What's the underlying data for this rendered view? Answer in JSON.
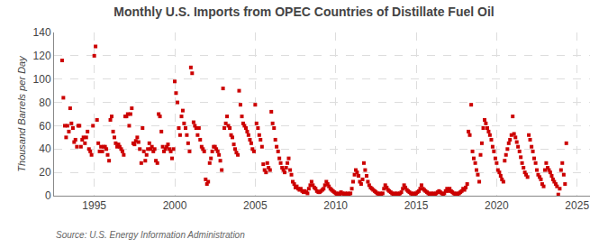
{
  "chart_data": {
    "type": "scatter",
    "title": "Monthly U.S. Imports from OPEC Countries of Distillate Fuel Oil",
    "y_label": "Thousand Barrels per Day",
    "annotations": [
      "Source: U.S. Energy Information Administration"
    ],
    "color": "#cc0000",
    "marker": "square",
    "grid": true,
    "xlim": [
      1992.5,
      2025.8
    ],
    "xticks": [
      1995,
      2000,
      2005,
      2010,
      2015,
      2020,
      2025
    ],
    "ylim": [
      0,
      140
    ],
    "yticks": [
      0,
      20,
      40,
      60,
      80,
      100,
      120,
      140
    ],
    "x": [
      1993.0,
      1993.08,
      1993.17,
      1993.25,
      1993.33,
      1993.42,
      1993.5,
      1993.58,
      1993.67,
      1993.75,
      1993.83,
      1993.92,
      1994.0,
      1994.08,
      1994.17,
      1994.25,
      1994.33,
      1994.42,
      1994.5,
      1994.58,
      1994.67,
      1994.75,
      1994.83,
      1994.92,
      1995.0,
      1995.08,
      1995.17,
      1995.25,
      1995.33,
      1995.42,
      1995.5,
      1995.58,
      1995.67,
      1995.75,
      1995.83,
      1995.92,
      1996.0,
      1996.08,
      1996.17,
      1996.25,
      1996.33,
      1996.42,
      1996.5,
      1996.58,
      1996.67,
      1996.75,
      1996.83,
      1996.92,
      1997.0,
      1997.08,
      1997.17,
      1997.25,
      1997.33,
      1997.42,
      1997.5,
      1997.58,
      1997.67,
      1997.75,
      1997.83,
      1997.92,
      1998.0,
      1998.08,
      1998.17,
      1998.25,
      1998.33,
      1998.42,
      1998.5,
      1998.58,
      1998.67,
      1998.75,
      1998.83,
      1998.92,
      1999.0,
      1999.08,
      1999.17,
      1999.25,
      1999.33,
      1999.42,
      1999.5,
      1999.58,
      1999.67,
      1999.75,
      1999.83,
      1999.92,
      2000.0,
      2000.08,
      2000.17,
      2000.25,
      2000.33,
      2000.42,
      2000.5,
      2000.58,
      2000.67,
      2000.75,
      2000.83,
      2000.92,
      2001.0,
      2001.08,
      2001.17,
      2001.25,
      2001.33,
      2001.42,
      2001.5,
      2001.58,
      2001.67,
      2001.75,
      2001.83,
      2001.92,
      2002.0,
      2002.08,
      2002.17,
      2002.25,
      2002.33,
      2002.42,
      2002.5,
      2002.58,
      2002.67,
      2002.75,
      2002.83,
      2002.92,
      2003.0,
      2003.08,
      2003.17,
      2003.25,
      2003.33,
      2003.42,
      2003.5,
      2003.58,
      2003.67,
      2003.75,
      2003.83,
      2003.92,
      2004.0,
      2004.08,
      2004.17,
      2004.25,
      2004.33,
      2004.42,
      2004.5,
      2004.58,
      2004.67,
      2004.75,
      2004.83,
      2004.92,
      2005.0,
      2005.08,
      2005.17,
      2005.25,
      2005.33,
      2005.42,
      2005.5,
      2005.58,
      2005.67,
      2005.75,
      2005.83,
      2005.92,
      2006.0,
      2006.08,
      2006.17,
      2006.25,
      2006.33,
      2006.42,
      2006.5,
      2006.58,
      2006.67,
      2006.75,
      2006.83,
      2006.92,
      2007.0,
      2007.08,
      2007.17,
      2007.25,
      2007.33,
      2007.42,
      2007.5,
      2007.58,
      2007.67,
      2007.75,
      2007.83,
      2007.92,
      2008.0,
      2008.08,
      2008.17,
      2008.25,
      2008.33,
      2008.42,
      2008.5,
      2008.58,
      2008.67,
      2008.75,
      2008.83,
      2008.92,
      2009.0,
      2009.08,
      2009.17,
      2009.25,
      2009.33,
      2009.42,
      2009.5,
      2009.58,
      2009.67,
      2009.75,
      2009.83,
      2009.92,
      2010.0,
      2010.08,
      2010.17,
      2010.25,
      2010.33,
      2010.42,
      2010.5,
      2010.58,
      2010.67,
      2010.75,
      2010.83,
      2010.92,
      2011.0,
      2011.08,
      2011.17,
      2011.25,
      2011.33,
      2011.42,
      2011.5,
      2011.58,
      2011.67,
      2011.75,
      2011.83,
      2011.92,
      2012.0,
      2012.08,
      2012.17,
      2012.25,
      2012.33,
      2012.42,
      2012.5,
      2012.58,
      2012.67,
      2012.75,
      2012.83,
      2012.92,
      2013.0,
      2013.08,
      2013.17,
      2013.25,
      2013.33,
      2013.42,
      2013.5,
      2013.58,
      2013.67,
      2013.75,
      2013.83,
      2013.92,
      2014.0,
      2014.08,
      2014.17,
      2014.25,
      2014.33,
      2014.42,
      2014.5,
      2014.58,
      2014.67,
      2014.75,
      2014.83,
      2014.92,
      2015.0,
      2015.08,
      2015.17,
      2015.25,
      2015.33,
      2015.42,
      2015.5,
      2015.58,
      2015.67,
      2015.75,
      2015.83,
      2015.92,
      2016.0,
      2016.08,
      2016.17,
      2016.25,
      2016.33,
      2016.42,
      2016.5,
      2016.58,
      2016.67,
      2016.75,
      2016.83,
      2016.92,
      2017.0,
      2017.08,
      2017.17,
      2017.25,
      2017.33,
      2017.42,
      2017.5,
      2017.58,
      2017.67,
      2017.75,
      2017.83,
      2017.92,
      2018.0,
      2018.08,
      2018.17,
      2018.25,
      2018.33,
      2018.42,
      2018.5,
      2018.58,
      2018.67,
      2018.75,
      2018.83,
      2018.92,
      2019.0,
      2019.08,
      2019.17,
      2019.25,
      2019.33,
      2019.42,
      2019.5,
      2019.58,
      2019.67,
      2019.75,
      2019.83,
      2019.92,
      2020.0,
      2020.08,
      2020.17,
      2020.25,
      2020.33,
      2020.42,
      2020.5,
      2020.58,
      2020.67,
      2020.75,
      2020.83,
      2020.92,
      2021.0,
      2021.08,
      2021.17,
      2021.25,
      2021.33,
      2021.42,
      2021.5,
      2021.58,
      2021.67,
      2021.75,
      2021.83,
      2021.92,
      2022.0,
      2022.08,
      2022.17,
      2022.25,
      2022.33,
      2022.42,
      2022.5,
      2022.58,
      2022.67,
      2022.75,
      2022.83,
      2022.92,
      2023.0,
      2023.08,
      2023.17,
      2023.25,
      2023.33,
      2023.42,
      2023.5,
      2023.58,
      2023.67,
      2023.75,
      2023.83,
      2023.92,
      2024.0,
      2024.08,
      2024.17,
      2024.25,
      2024.33
    ],
    "values": [
      116,
      84,
      60,
      50,
      60,
      55,
      75,
      62,
      58,
      46,
      48,
      42,
      60,
      60,
      42,
      48,
      50,
      45,
      50,
      55,
      40,
      38,
      35,
      60,
      120,
      128,
      65,
      45,
      38,
      42,
      38,
      42,
      42,
      40,
      35,
      30,
      65,
      68,
      55,
      50,
      45,
      42,
      44,
      42,
      40,
      38,
      35,
      68,
      68,
      70,
      60,
      70,
      75,
      45,
      44,
      47,
      50,
      46,
      40,
      28,
      58,
      38,
      30,
      35,
      40,
      45,
      40,
      42,
      38,
      40,
      30,
      28,
      70,
      68,
      55,
      42,
      38,
      40,
      42,
      44,
      40,
      38,
      32,
      40,
      98,
      88,
      80,
      58,
      52,
      68,
      73,
      62,
      58,
      52,
      45,
      38,
      110,
      105,
      63,
      60,
      58,
      52,
      58,
      48,
      42,
      40,
      38,
      14,
      10,
      12,
      28,
      32,
      38,
      42,
      42,
      40,
      38,
      35,
      30,
      22,
      92,
      58,
      62,
      68,
      60,
      58,
      52,
      50,
      44,
      40,
      37,
      35,
      90,
      78,
      68,
      62,
      60,
      58,
      55,
      52,
      48,
      45,
      40,
      38,
      78,
      62,
      58,
      52,
      48,
      42,
      27,
      22,
      20,
      28,
      24,
      22,
      72,
      62,
      58,
      48,
      42,
      38,
      32,
      28,
      24,
      22,
      20,
      24,
      28,
      32,
      22,
      18,
      12,
      10,
      7,
      8,
      6,
      5,
      6,
      4,
      3,
      4,
      3,
      2,
      6,
      9,
      12,
      9,
      7,
      6,
      4,
      3,
      3,
      4,
      5,
      6,
      9,
      12,
      10,
      8,
      6,
      5,
      4,
      3,
      2,
      1,
      2,
      1,
      3,
      2,
      1,
      2,
      1,
      2,
      1,
      2,
      6,
      12,
      18,
      22,
      20,
      17,
      12,
      10,
      14,
      28,
      22,
      17,
      12,
      9,
      7,
      6,
      5,
      4,
      3,
      2,
      1,
      2,
      1,
      2,
      6,
      9,
      7,
      5,
      4,
      3,
      2,
      1,
      2,
      1,
      2,
      1,
      2,
      3,
      6,
      9,
      7,
      5,
      4,
      3,
      2,
      1,
      2,
      1,
      2,
      3,
      4,
      6,
      9,
      6,
      5,
      4,
      3,
      2,
      1,
      2,
      1,
      2,
      1,
      2,
      3,
      4,
      3,
      2,
      1,
      2,
      4,
      6,
      4,
      6,
      4,
      3,
      2,
      1,
      2,
      1,
      2,
      3,
      4,
      6,
      5,
      7,
      10,
      55,
      52,
      78,
      38,
      32,
      28,
      22,
      18,
      12,
      35,
      45,
      58,
      65,
      62,
      58,
      55,
      52,
      48,
      42,
      38,
      32,
      28,
      22,
      20,
      17,
      14,
      12,
      30,
      35,
      40,
      45,
      48,
      52,
      68,
      53,
      50,
      46,
      42,
      38,
      33,
      28,
      24,
      20,
      18,
      16,
      52,
      48,
      42,
      38,
      32,
      28,
      22,
      18,
      16,
      14,
      10,
      8,
      22,
      28,
      24,
      22,
      20,
      17,
      14,
      12,
      10,
      8,
      1,
      6,
      22,
      28,
      18,
      10,
      45
    ]
  }
}
